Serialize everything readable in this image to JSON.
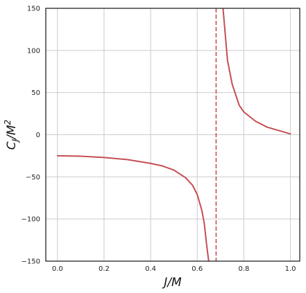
{
  "chart_data": {
    "type": "line",
    "title": "",
    "xlabel": "J/M",
    "ylabel_parts": {
      "base": "C",
      "sub": "J",
      "mid": "/M",
      "sup": "2"
    },
    "xlim": [
      -0.05,
      1.04
    ],
    "ylim": [
      -150,
      150
    ],
    "grid": true,
    "legend": "none",
    "x_ticks": [
      0.0,
      0.2,
      0.4,
      0.6,
      0.8,
      1.0
    ],
    "x_tick_labels": [
      "0.0",
      "0.2",
      "0.4",
      "0.6",
      "0.8",
      "1.0"
    ],
    "y_ticks": [
      -150,
      -100,
      -50,
      0,
      50,
      100,
      150
    ],
    "y_tick_labels": [
      "−150",
      "−100",
      "−50",
      "0",
      "50",
      "100",
      "150"
    ],
    "colors": {
      "line": "#c44e52",
      "asymptote": "#c44e52",
      "grid": "#cccccc"
    },
    "asymptote_x": 0.681,
    "series": [
      {
        "x": [
          0.0,
          0.1,
          0.2,
          0.3,
          0.4,
          0.45,
          0.5,
          0.55,
          0.58,
          0.6,
          0.62,
          0.63,
          0.64,
          0.65
        ],
        "y": [
          -25.0,
          -25.5,
          -27.0,
          -29.5,
          -34.0,
          -37.0,
          -42.0,
          -51.0,
          -60.0,
          -71.0,
          -90.0,
          -105.0,
          -130.0,
          -152.0
        ]
      },
      {
        "x": [
          0.71,
          0.72,
          0.73,
          0.75,
          0.78,
          0.8,
          0.85,
          0.9,
          0.95,
          1.0
        ],
        "y": [
          152.0,
          120.0,
          88.0,
          60.0,
          35.0,
          27.0,
          16.0,
          9.0,
          5.0,
          1.0
        ]
      }
    ]
  }
}
